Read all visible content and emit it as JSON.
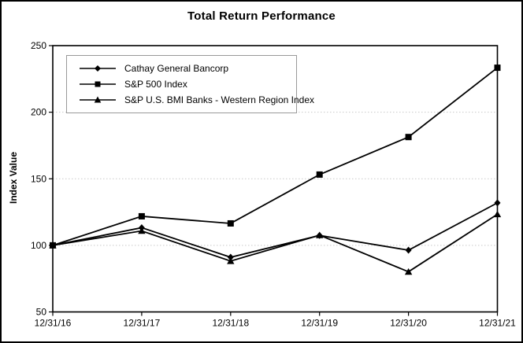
{
  "chart_data": {
    "type": "line",
    "title": "Total Return Performance",
    "ylabel": "Index Value",
    "xlabel": "",
    "categories": [
      "12/31/16",
      "12/31/17",
      "12/31/18",
      "12/31/19",
      "12/31/20",
      "12/31/21"
    ],
    "series": [
      {
        "name": "Cathay General Bancorp",
        "marker": "diamond",
        "values": [
          100.0,
          113.25,
          91.06,
          107.47,
          96.36,
          131.91
        ]
      },
      {
        "name": "S&P 500 Index",
        "marker": "square",
        "values": [
          100.0,
          121.83,
          116.49,
          153.17,
          181.35,
          233.41
        ]
      },
      {
        "name": "S&P U.S. BMI Banks - Western Region Index",
        "marker": "triangle",
        "values": [
          100.0,
          110.85,
          88.19,
          107.63,
          80.17,
          123.37
        ]
      }
    ],
    "ylim": [
      50,
      250
    ],
    "y_ticks": [
      50,
      100,
      150,
      200,
      250
    ],
    "grid": "horizontal-dotted",
    "legend_position": "top-left-inside",
    "line_color": "#000000",
    "marker_color": "#000000",
    "grid_color": "#c9c9c9",
    "axis_color": "#000000",
    "background": "#ffffff"
  }
}
